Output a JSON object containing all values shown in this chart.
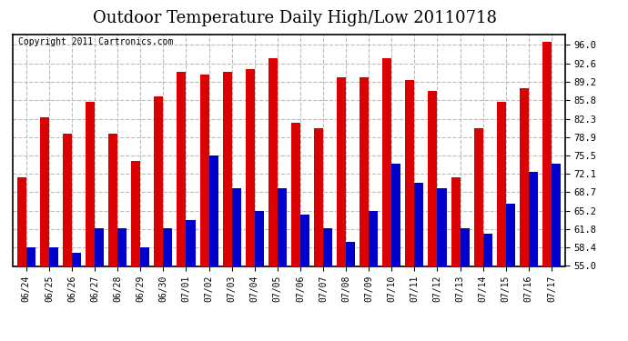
{
  "title": "Outdoor Temperature Daily High/Low 20110718",
  "copyright": "Copyright 2011 Cartronics.com",
  "dates": [
    "06/24",
    "06/25",
    "06/26",
    "06/27",
    "06/28",
    "06/29",
    "06/30",
    "07/01",
    "07/02",
    "07/03",
    "07/04",
    "07/05",
    "07/06",
    "07/07",
    "07/08",
    "07/09",
    "07/10",
    "07/11",
    "07/12",
    "07/13",
    "07/14",
    "07/15",
    "07/16",
    "07/17"
  ],
  "highs": [
    71.5,
    82.5,
    79.5,
    85.5,
    79.5,
    74.5,
    86.5,
    91.0,
    90.5,
    91.0,
    91.5,
    93.5,
    81.5,
    80.5,
    90.0,
    90.0,
    93.5,
    89.5,
    87.5,
    71.5,
    80.5,
    85.5,
    88.0,
    96.5
  ],
  "lows": [
    58.5,
    58.5,
    57.5,
    62.0,
    62.0,
    58.5,
    62.0,
    63.5,
    75.5,
    69.5,
    65.2,
    69.5,
    64.5,
    62.0,
    59.5,
    65.2,
    74.0,
    70.5,
    69.5,
    62.0,
    61.0,
    66.5,
    72.5,
    74.0
  ],
  "high_color": "#dd0000",
  "low_color": "#0000cc",
  "bg_color": "#ffffff",
  "grid_color": "#bbbbbb",
  "ylim": [
    55.0,
    98.0
  ],
  "yticks": [
    55.0,
    58.4,
    61.8,
    65.2,
    68.7,
    72.1,
    75.5,
    78.9,
    82.3,
    85.8,
    89.2,
    92.6,
    96.0
  ],
  "title_fontsize": 13,
  "copyright_fontsize": 7,
  "bar_width": 0.4
}
